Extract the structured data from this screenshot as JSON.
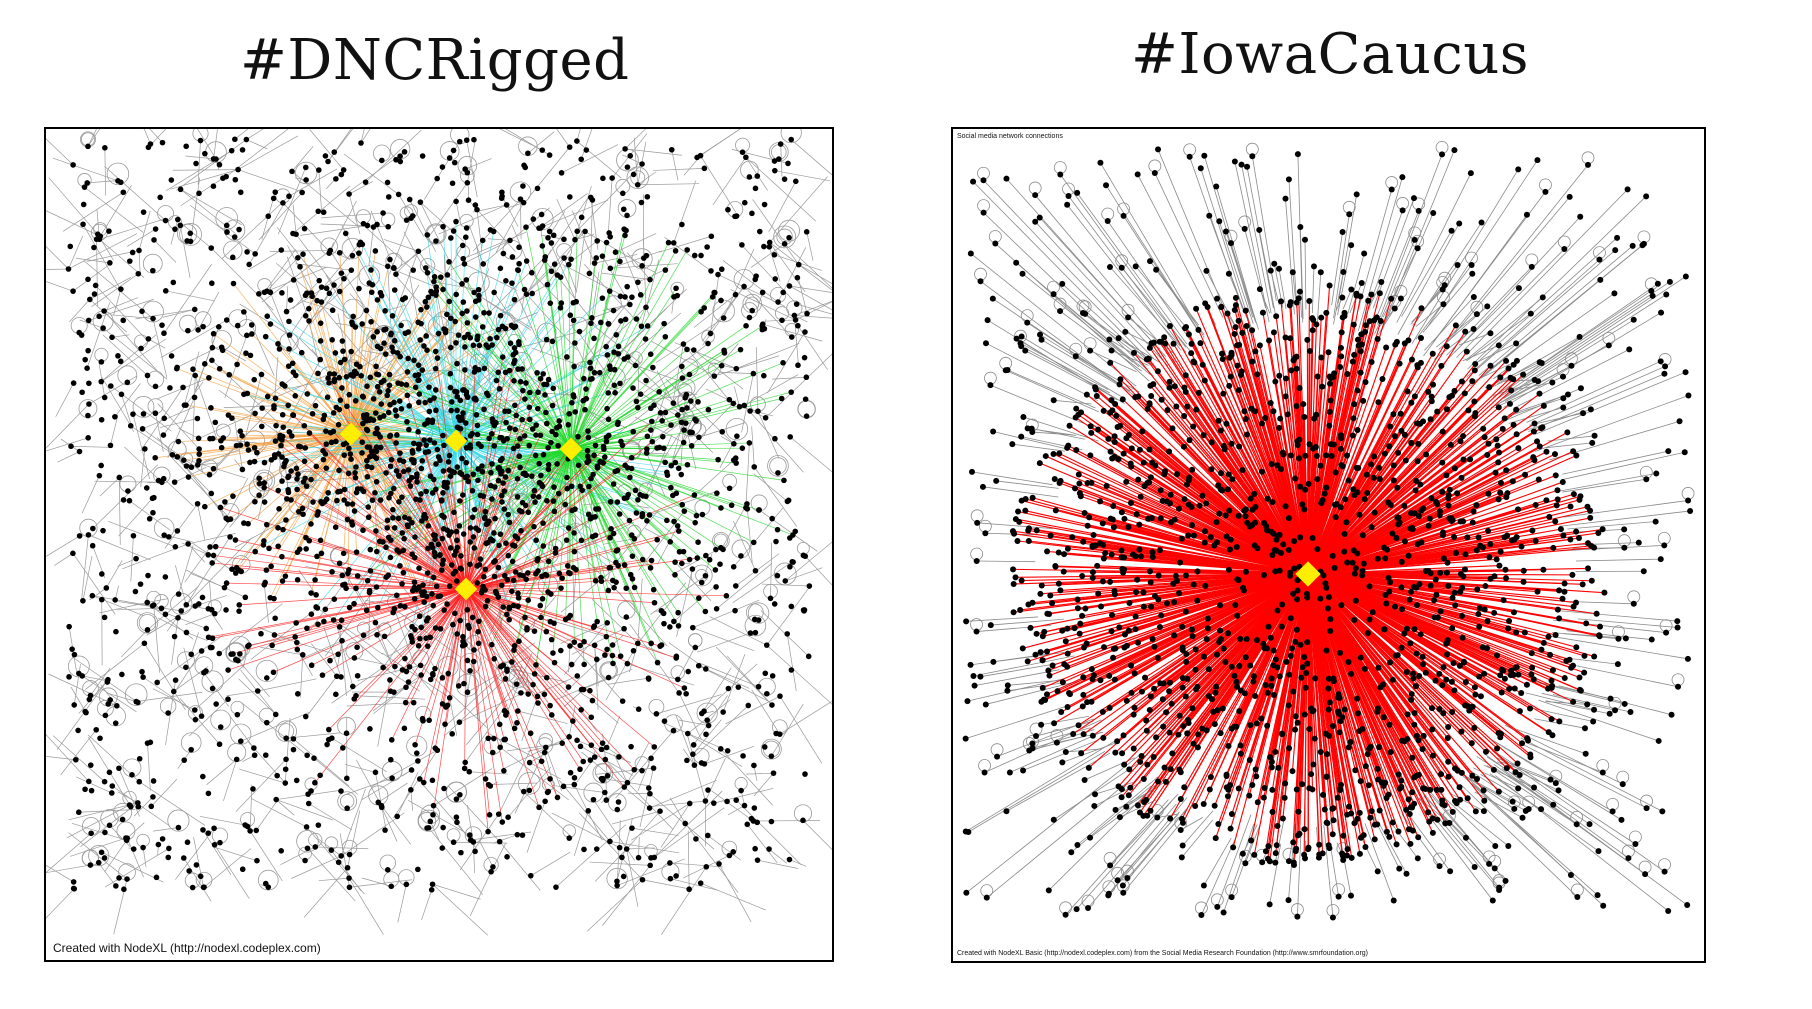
{
  "panels": [
    {
      "title": "#DNCRigged",
      "credit": "Created with NodeXL (http://nodexl.codeplex.com)",
      "cluster_colors": [
        "#f5a040",
        "#33d8e8",
        "#22d82a",
        "#ff1e1e"
      ],
      "hub_color": "#ffee00",
      "edge_color": "#9a9a9a",
      "node_color": "#000000"
    },
    {
      "title": "#IowaCaucus",
      "subtitle": "Social media network connections",
      "credit": "Created with NodeXL Basic (http://nodexl.codeplex.com) from the Social Media Research Foundation (http://www.smrfoundation.org)",
      "cluster_colors": [
        "#ff0000"
      ],
      "hub_color": "#ffee00",
      "edge_color": "#8a8a8a",
      "node_color": "#000000"
    }
  ]
}
